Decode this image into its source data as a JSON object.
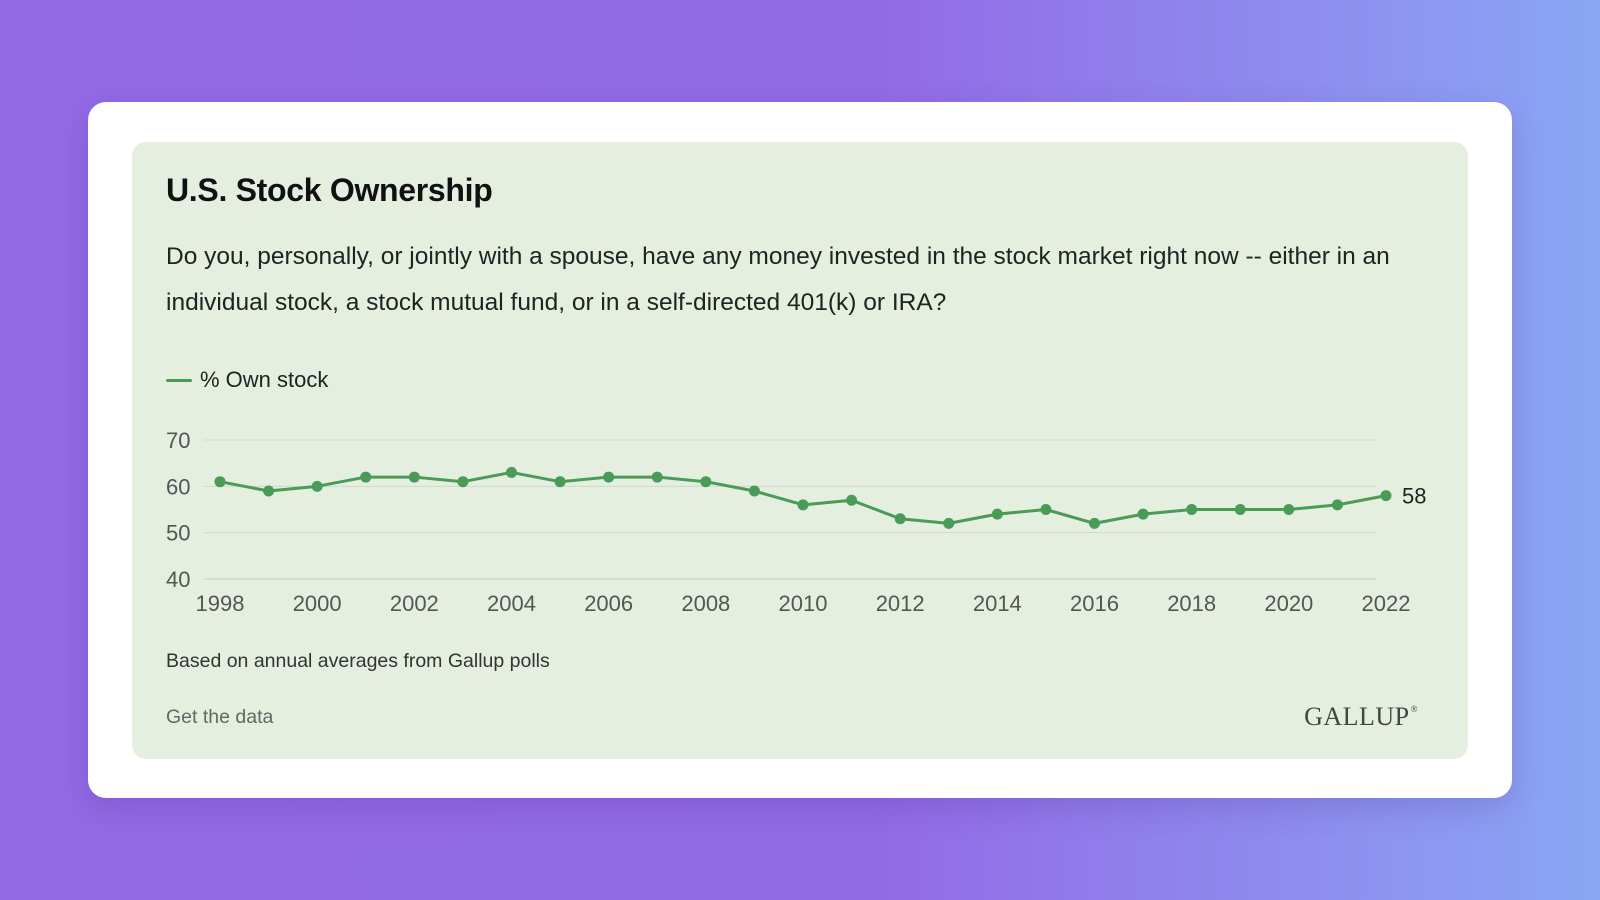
{
  "card": {
    "title": "U.S. Stock Ownership",
    "question": "Do you, personally, or jointly with a spouse, have any money invested in the stock market right now -- either in an individual stock, a stock mutual fund, or in a self-directed 401(k) or IRA?",
    "note": "Based on annual averages from Gallup polls",
    "link_label": "Get the data",
    "brand": "GALLUP",
    "brand_mark": "®"
  },
  "colors": {
    "series": "#4a9a58",
    "card_bg": "#e5efe0",
    "grid": "#d3d8d0"
  },
  "chart_data": {
    "type": "line",
    "title": "U.S. Stock Ownership",
    "xlabel": "",
    "ylabel": "",
    "ylim": [
      40,
      70
    ],
    "yticks": [
      40,
      50,
      60,
      70
    ],
    "xticks": [
      1998,
      2000,
      2002,
      2004,
      2006,
      2008,
      2010,
      2012,
      2014,
      2016,
      2018,
      2020,
      2022
    ],
    "grid": true,
    "legend": "top-left",
    "x": [
      1998,
      1999,
      2000,
      2001,
      2002,
      2003,
      2004,
      2005,
      2006,
      2007,
      2008,
      2009,
      2010,
      2011,
      2012,
      2013,
      2014,
      2015,
      2016,
      2017,
      2018,
      2019,
      2020,
      2021,
      2022
    ],
    "series": [
      {
        "name": "% Own stock",
        "values": [
          61,
          59,
          60,
          62,
          62,
          61,
          63,
          61,
          62,
          62,
          61,
          59,
          56,
          57,
          53,
          52,
          54,
          55,
          52,
          54,
          55,
          55,
          55,
          56,
          58
        ],
        "end_label": "58"
      }
    ]
  }
}
